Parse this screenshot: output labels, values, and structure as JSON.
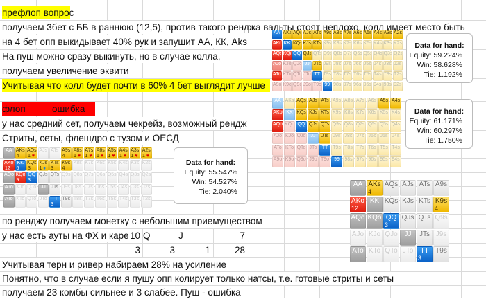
{
  "preflop": {
    "heading": "префлоп   вопрос",
    "lines": [
      "получаем 3бет с ББ в раннюю (12,5), против такого ренджа вальты стоят неплохо, колл имеет место быть",
      "на 4 бет опп выкидывает 40% рук и запушит АА, КК, Aks",
      "На пуш можно сразу выкинуть, но в случае колла,",
      "получаем увеличение эквити",
      "Учитывая что колл будет почти в 60% 4 бет выглядит лучше"
    ]
  },
  "flop": {
    "heading_left": "флоп",
    "heading_right": "ошибка",
    "lines": [
      "у нас средний сет, получаем чекрейз, возможный рендж",
      "Стриты, сеты, флешдро с тузом и ОЕСД"
    ]
  },
  "analysis": {
    "line1": "по ренджу получаем монетку с небольшим приемуществом",
    "line2": "у нас есть ауты на ФХ и каре",
    "outs_row": [
      "10",
      "Q",
      "J",
      "7"
    ],
    "count_row": [
      "3",
      "3",
      "1",
      "28"
    ],
    "line3": "Учитывая терн и ривер набираем 28% на усиление",
    "line4": "Понятно, что в случае если я пушу опп колирует только натсы, т.е. готовые стриты и сеты",
    "line5": "получаем 23 комбы сильнее и 3 слабее. Пуш - ошибка"
  },
  "equity_boxes": [
    {
      "title": "Data for hand:",
      "equity": "Equity: 59.224%",
      "win": "Win: 58.628%",
      "tie": "Tie: 1.192%"
    },
    {
      "title": "Data for hand:",
      "equity": "Equity: 61.171%",
      "win": "Win: 60.297%",
      "tie": "Tie: 1.750%"
    },
    {
      "title": "Data for hand:",
      "equity": "Equity: 55.547%",
      "win": "Win: 54.527%",
      "tie": "Tie: 2.040%"
    }
  ],
  "hand_grids": [
    {
      "name": "preflop-range-grid-1",
      "rows": [
        [
          "AA|b",
          "AKs|y",
          "AQs|y",
          "AJs|y",
          "ATs|y",
          "A9s|y",
          "A8s|y",
          "A7s|y",
          "A6s|y",
          "A5s|y",
          "A4s|y",
          "A3s|y",
          "A2s|y"
        ],
        [
          "AKo|r",
          "KK|b",
          "KQs|y",
          "KJs|y",
          "KTs|y",
          "K9s|ly",
          "K8s|ly",
          "K7s|ly",
          "K6s|ly",
          "K5s|ly",
          "K4s|ly",
          "K3s|ly",
          "K2s|ly"
        ],
        [
          "AQo|r",
          "KQo|r",
          "QQ|b",
          "QJs|y",
          "QTs|ly",
          "Q9s|ly",
          "Q8s|ly",
          "Q7s|ly",
          "Q6s|ly",
          "Q5s|ly",
          "Q4s|ly",
          "Q3s|ly",
          "Q2s|ly"
        ],
        [
          "AJo|lr",
          "KJo|pr",
          "QJo|pr",
          "JJ|lb",
          "JTs|y",
          "J9s|ly",
          "J8s|ly",
          "J7s|ly",
          "J6s|ly",
          "J5s|ly",
          "J4s|ly",
          "J3s|ly",
          "J2s|ly"
        ],
        [
          "ATo|r",
          "KTo|pr",
          "QTo|pr",
          "JTo|pr",
          "TT|b",
          "T9s|ly",
          "T8s|ly",
          "T7s|ly",
          "T6s|ly",
          "T5s|ly",
          "T4s|ly",
          "T3s|ly",
          "T2s|ly"
        ],
        [
          "A9o|pr",
          "K9o|pr",
          "Q9o|pr",
          "J9o|pr",
          "T9o|pr",
          "99|b",
          "98s|ly",
          "97s|ly",
          "96s|ly",
          "95s|ly",
          "94s|ly",
          "93s|ly",
          "92s|ly"
        ]
      ]
    },
    {
      "name": "preflop-range-grid-2",
      "rows": [
        [
          "AA|lb",
          "AKs|ly",
          "AQs|y",
          "AJs|y",
          "ATs|y",
          "A9s|ly",
          "A8s|ly",
          "A7s|ly",
          "A6s|ly",
          "A5s|y",
          "A4s|y"
        ],
        [
          "AKo|r",
          "KK|lb",
          "KQs|y",
          "KJs|y",
          "KTs|y",
          "K9s|ly",
          "K8s|ly",
          "K7s|ly",
          "K6s|ly",
          "K5s|ly",
          "K4s|ly"
        ],
        [
          "AQo|r",
          "KQo|pr",
          "QQ|b",
          "QJs|y",
          "QTs|y",
          "Q9s|ly",
          "Q8s|ly",
          "Q7s|ly",
          "Q6s|ly",
          "Q5s|ly",
          "Q4s|ly"
        ],
        [
          "AJo|pr",
          "KJo|pr",
          "QJo|pr",
          "JJ|lb",
          "JTs|y",
          "J9s|ly",
          "J8s|ly",
          "J7s|ly",
          "J6s|ly",
          "J5s|ly",
          "J4s|ly"
        ],
        [
          "ATo|pr",
          "KTo|pr",
          "QTo|pr",
          "JTo|pr",
          "TT|b",
          "T9s|ly",
          "T8s|ly",
          "T7s|ly",
          "T6s|ly",
          "T5s|ly",
          "T4s|ly"
        ],
        [
          "A9o|pr",
          "K9o|pr",
          "Q9o|pr",
          "J9o|pr",
          "T9o|pr",
          "99|b",
          "98s|ly",
          "97s|ly",
          "96s|ly",
          "95s|ly",
          "94s|ly"
        ]
      ]
    },
    {
      "name": "flop-range-grid",
      "rows": [
        [
          "AA|g",
          "AKs|y|4",
          "AQs|y|1 ♥",
          "AJs|w",
          "ATs|w",
          "A9s|y|4",
          "A8s|y|1 ♥",
          "A7s|y|1 ♥",
          "A6s|y|1 ♥",
          "A5s|y|1 ♥",
          "A4s|y|1 ♥",
          "A3s|y|1 ♥",
          "A2s|y|1 ♥"
        ],
        [
          "AKo|r|12",
          "KK|b|6",
          "KQs|y|3",
          "KJs|y|1 ♦",
          "KTs|y|3",
          "K9s|y|4",
          "K8s|w",
          "K7s|w",
          "K6s|w",
          "K5s|w",
          "K4s|w",
          "K3s|w",
          "K2s|w"
        ],
        [
          "AQo|g",
          "KQo|r|9",
          "QQ|b|3",
          "QJs|w2",
          "QTs|w2",
          "Q9s|w",
          "Q8s|w",
          "Q7s|w",
          "Q6s|w",
          "Q5s|w",
          "Q4s|w",
          "Q3s|w",
          "Q2s|w"
        ],
        [
          "AJo|g",
          "KJo|w",
          "QJo|w",
          "JJ|g",
          "JTs|w2",
          "J9s|w",
          "J8s|w",
          "J7s|w",
          "J6s|w",
          "J5s|w",
          "J4s|w",
          "J3s|w",
          "J2s|w"
        ],
        [
          "ATo|g",
          "KTo|w",
          "QTo|w",
          "JTo|w",
          "TT|b|3",
          "T9s|w2",
          "T8s|w",
          "T7s|w",
          "T6s|w",
          "T5s|w",
          "T4s|w",
          "T3s|w",
          "T2s|w"
        ]
      ]
    },
    {
      "name": "strong-combos-grid",
      "rows": [
        [
          "AA|g",
          "AKs|y|4",
          "AQs|w2",
          "AJs|w2",
          "ATs|w2",
          "A9s|w2"
        ],
        [
          "AKo|r|12",
          "KK|g",
          "KQs|w2",
          "KJs|w2",
          "KTs|w2",
          "K9s|y|4"
        ],
        [
          "AQo|g",
          "KQo|g",
          "QQ|b|3",
          "QJs|w2",
          "QTs|w2",
          "Q9s|w"
        ],
        [
          "AJo|w",
          "KJo|w",
          "QJo|w",
          "JJ|g",
          "JTs|w2",
          "J9s|w"
        ],
        [
          "ATo|g",
          "KTo|w",
          "QTo|w",
          "JTo|w",
          "TT|b|3",
          "T9s|w2"
        ]
      ]
    }
  ],
  "colors": {
    "highlight_yellow": "#ffff00",
    "highlight_red": "#ff0000",
    "pair": "#0a62c8",
    "offsuit": "#e01e10",
    "suited": "#f0b800"
  }
}
